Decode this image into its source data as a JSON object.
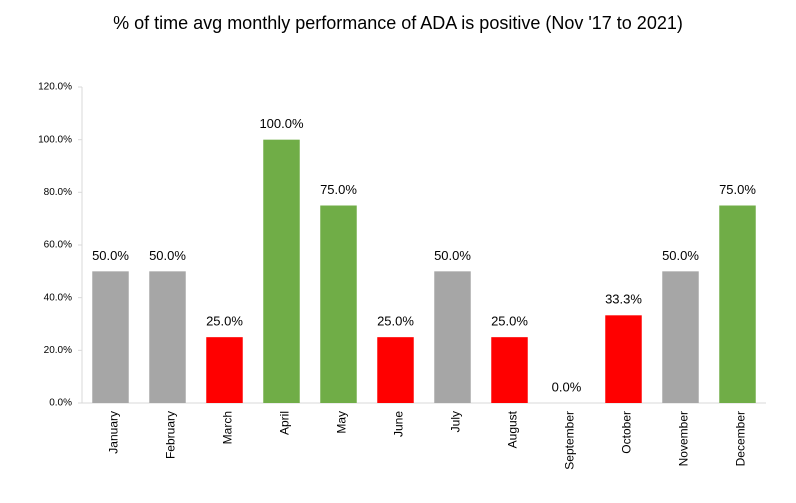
{
  "chart_data": {
    "type": "bar",
    "title": "% of time avg monthly performance of ADA is positive (Nov '17 to 2021)",
    "categories": [
      "January",
      "February",
      "March",
      "April",
      "May",
      "June",
      "July",
      "August",
      "September",
      "October",
      "November",
      "December"
    ],
    "values": [
      50,
      50,
      25,
      100,
      75,
      25,
      50,
      25,
      0,
      33.3,
      50,
      75
    ],
    "value_labels": [
      "50.0%",
      "50.0%",
      "25.0%",
      "100.0%",
      "75.0%",
      "25.0%",
      "50.0%",
      "25.0%",
      "0.0%",
      "33.3%",
      "50.0%",
      "75.0%"
    ],
    "colors": [
      "#a6a6a6",
      "#a6a6a6",
      "#ff0000",
      "#70ad47",
      "#70ad47",
      "#ff0000",
      "#a6a6a6",
      "#ff0000",
      "#a6a6a6",
      "#ff0000",
      "#a6a6a6",
      "#70ad47"
    ],
    "ylim": [
      0,
      120
    ],
    "yticks": [
      {
        "value": 0,
        "label": "0.0%"
      },
      {
        "value": 20,
        "label": "20.0%"
      },
      {
        "value": 40,
        "label": "40.0%"
      },
      {
        "value": 60,
        "label": "60.0%"
      },
      {
        "value": 80,
        "label": "80.0%"
      },
      {
        "value": 100,
        "label": "100.0%"
      },
      {
        "value": 120,
        "label": "120.0%"
      }
    ],
    "grid": false
  }
}
